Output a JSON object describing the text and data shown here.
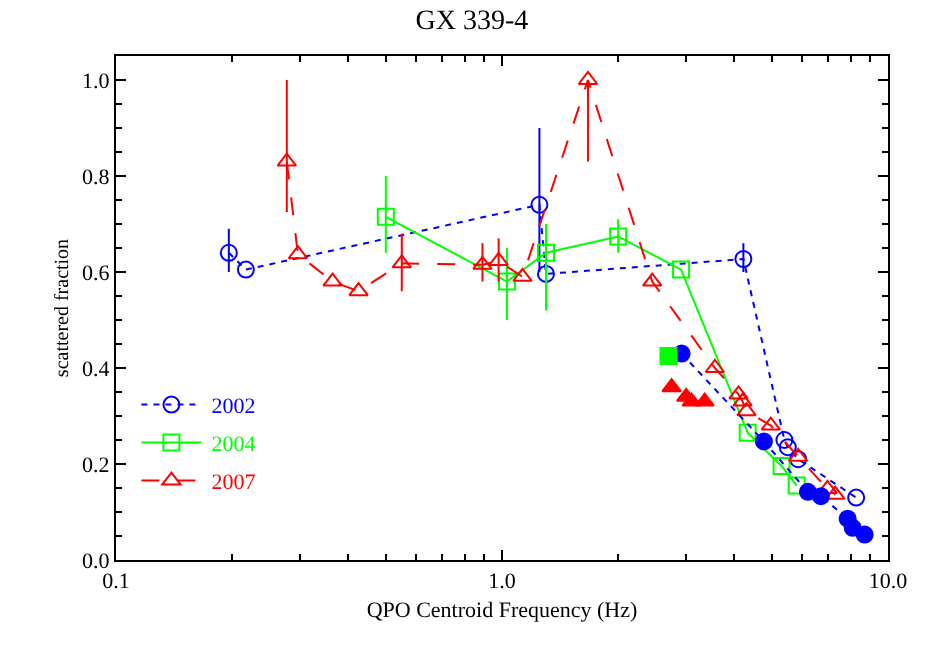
{
  "chart_data": {
    "type": "line",
    "title": "GX 339-4",
    "xlabel": "QPO Centroid Frequency (Hz)",
    "ylabel": "scattered fraction",
    "log": "x",
    "xlim": [
      0.1,
      10
    ],
    "xticks": [
      {
        "value": 0.1,
        "label": "0.1"
      },
      {
        "value": 1,
        "label": "1.0"
      },
      {
        "value": 10,
        "label": "10.0"
      }
    ],
    "ylim": [
      0,
      1.05
    ],
    "yticks": [
      {
        "value": 0,
        "label": "0.0"
      },
      {
        "value": 0.2,
        "label": "0.2"
      },
      {
        "value": 0.4,
        "label": "0.4"
      },
      {
        "value": 0.6,
        "label": "0.6"
      },
      {
        "value": 0.8,
        "label": "0.8"
      },
      {
        "value": 1.0,
        "label": "1.0"
      }
    ],
    "legend": "bottom left",
    "series": [
      {
        "name": "2002",
        "color": "#0000ff",
        "marker": "circle",
        "line_style": "dotted",
        "x": [
          0.196,
          0.217,
          1.25,
          1.3,
          4.22,
          5.39,
          5.5,
          5.85,
          8.27
        ],
        "values": [
          0.64,
          0.605,
          0.74,
          0.596,
          0.627,
          0.25,
          0.235,
          0.21,
          0.13
        ],
        "errors": [
          [
            0.6,
            0.69
          ],
          null,
          [
            0.6,
            0.9
          ],
          null,
          [
            0.6,
            0.66
          ],
          null,
          null,
          null,
          null
        ]
      },
      {
        "name": "2004",
        "color": "#00ff00",
        "marker": "square",
        "line_style": "solid",
        "x": [
          0.5,
          1.03,
          1.3,
          2.0,
          2.91,
          4.33,
          5.3,
          5.8
        ],
        "values": [
          0.715,
          0.58,
          0.64,
          0.674,
          0.605,
          0.265,
          0.196,
          0.155
        ],
        "errors": [
          [
            0.64,
            0.8
          ],
          [
            0.5,
            0.65
          ],
          [
            0.52,
            0.7
          ],
          [
            0.64,
            0.71
          ],
          null,
          null,
          null,
          null
        ]
      },
      {
        "name": "2007",
        "color": "#ff0000",
        "marker": "triangle",
        "line_style": "dashed",
        "x": [
          0.277,
          0.296,
          0.364,
          0.425,
          0.55,
          0.89,
          0.98,
          1.13,
          1.67,
          2.45,
          3.56,
          4.1,
          4.2,
          4.3,
          4.97,
          5.85,
          6.97,
          7.3
        ],
        "values": [
          0.83,
          0.637,
          0.58,
          0.56,
          0.618,
          0.615,
          0.623,
          0.59,
          1.0,
          0.58,
          0.4,
          0.345,
          0.33,
          0.31,
          0.28,
          0.215,
          0.148,
          0.136
        ],
        "errors": [
          [
            0.725,
            1.0
          ],
          null,
          null,
          null,
          [
            0.56,
            0.68
          ],
          [
            0.58,
            0.66
          ],
          [
            0.58,
            0.67
          ],
          null,
          [
            0.83,
            1.0
          ],
          null,
          null,
          null,
          null,
          null,
          null,
          null,
          null,
          null
        ]
      },
      {
        "color": "#0000ff",
        "marker": "circle",
        "line_style": "dotted",
        "x": [
          2.92,
          4.77,
          6.2,
          6.7,
          7.86,
          8.1,
          8.7
        ],
        "values": [
          0.43,
          0.247,
          0.142,
          0.133,
          0.086,
          0.067,
          0.053
        ]
      },
      {
        "color": "#00ff00",
        "type": "scatter",
        "marker": "square",
        "x": [
          2.7
        ],
        "values": [
          0.425
        ]
      },
      {
        "color": "#ff0000",
        "type": "scatter",
        "marker": "triangle",
        "x": [
          2.75,
          3.0,
          3.1,
          3.35
        ],
        "values": [
          0.36,
          0.34,
          0.33,
          0.33
        ]
      }
    ]
  }
}
